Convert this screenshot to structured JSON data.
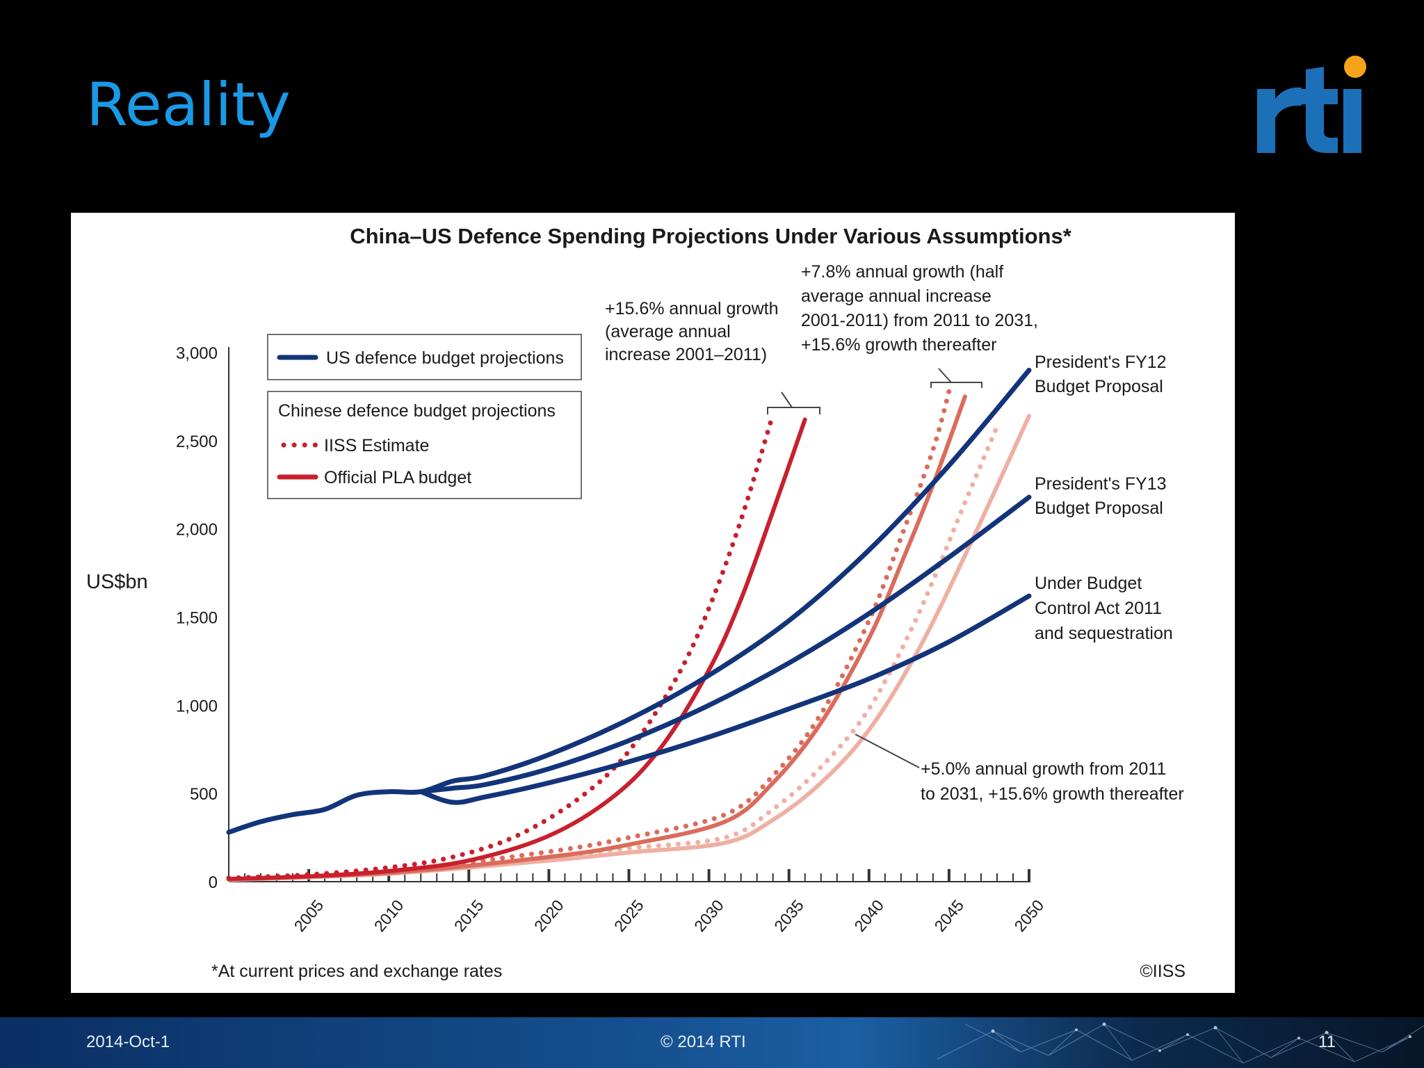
{
  "slide": {
    "title": "Reality",
    "logo_text": "rti",
    "footer": {
      "date": "2014-Oct-1",
      "copyright": "© 2014 RTI",
      "page": "11"
    }
  },
  "colors": {
    "title": "#1a9ae6",
    "us": "#12347a",
    "cn_dark": "#c8202e",
    "cn_mid": "#db6b5b",
    "cn_light": "#eeb0a2",
    "logo_blue": "#1c70b8",
    "logo_orange": "#f7a21b"
  },
  "chart_data": {
    "type": "line",
    "title": "China–US Defence Spending Projections Under Various Assumptions*",
    "ylabel": "US$bn",
    "xlabel": "",
    "xlim": [
      2000,
      2050
    ],
    "ylim": [
      0,
      3000
    ],
    "yticks": [
      0,
      500,
      1000,
      1500,
      2000,
      2500,
      3000
    ],
    "ytick_labels": [
      "0",
      "500",
      "1,000",
      "1,500",
      "2,000",
      "2,500",
      "3,000"
    ],
    "xticks": [
      2005,
      2010,
      2015,
      2020,
      2025,
      2030,
      2035,
      2040,
      2045,
      2050
    ],
    "footnote": "*At current prices and exchange rates",
    "source": "©IISS",
    "legend": {
      "us_label": "US defence budget projections",
      "cn_header": "Chinese defence budget projections",
      "iiss_label": "IISS Estimate",
      "pla_label": "Official PLA budget"
    },
    "series": [
      {
        "name": "US – President's FY12 Budget Proposal",
        "style": "us",
        "x": [
          2000,
          2002,
          2004,
          2006,
          2008,
          2010,
          2012,
          2014,
          2016,
          2020,
          2025,
          2030,
          2035,
          2040,
          2045,
          2050
        ],
        "values": [
          280,
          340,
          380,
          410,
          490,
          510,
          510,
          570,
          600,
          720,
          920,
          1170,
          1480,
          1880,
          2360,
          2900
        ]
      },
      {
        "name": "US – President's FY13 Budget Proposal",
        "style": "us",
        "x": [
          2012,
          2014,
          2016,
          2020,
          2025,
          2030,
          2035,
          2040,
          2045,
          2050
        ],
        "values": [
          510,
          530,
          550,
          640,
          800,
          1000,
          1240,
          1520,
          1840,
          2180
        ]
      },
      {
        "name": "US – Under Budget Control Act 2011 and sequestration",
        "style": "us",
        "x": [
          2012,
          2014,
          2016,
          2020,
          2025,
          2030,
          2035,
          2040,
          2045,
          2050
        ],
        "values": [
          510,
          450,
          480,
          560,
          680,
          820,
          980,
          1150,
          1360,
          1620
        ]
      },
      {
        "name": "China IISS Estimate – +15.6% annual growth",
        "style": "dark-dotted",
        "x": [
          2000,
          2005,
          2010,
          2014,
          2018,
          2022,
          2025,
          2028,
          2030,
          2032,
          2034
        ],
        "values": [
          20,
          40,
          80,
          140,
          260,
          480,
          740,
          1160,
          1550,
          2050,
          2650
        ]
      },
      {
        "name": "China Official PLA – +15.6% annual growth",
        "style": "dark-solid",
        "x": [
          2000,
          2005,
          2010,
          2015,
          2020,
          2024,
          2027,
          2030,
          2032,
          2034,
          2036
        ],
        "values": [
          15,
          30,
          60,
          120,
          260,
          480,
          760,
          1200,
          1600,
          2100,
          2620
        ]
      },
      {
        "name": "China IISS Estimate – +7.8% then +15.6%",
        "style": "mid-dotted",
        "x": [
          2000,
          2010,
          2020,
          2025,
          2031,
          2034,
          2037,
          2040,
          2042,
          2044,
          2045
        ],
        "values": [
          20,
          60,
          170,
          250,
          380,
          600,
          950,
          1480,
          1950,
          2450,
          2780
        ]
      },
      {
        "name": "China Official PLA – +7.8% then +15.6%",
        "style": "mid-solid",
        "x": [
          2000,
          2010,
          2020,
          2025,
          2031,
          2034,
          2037,
          2040,
          2042,
          2044,
          2046
        ],
        "values": [
          15,
          50,
          140,
          210,
          340,
          560,
          900,
          1380,
          1800,
          2250,
          2750
        ]
      },
      {
        "name": "China IISS Estimate – +5.0% then +15.6%",
        "style": "light-dotted",
        "x": [
          2000,
          2010,
          2020,
          2025,
          2031,
          2034,
          2037,
          2040,
          2043,
          2046,
          2048
        ],
        "values": [
          15,
          55,
          140,
          190,
          250,
          410,
          650,
          980,
          1500,
          2150,
          2580
        ]
      },
      {
        "name": "China Official PLA – +5.0% then +15.6%",
        "style": "light-solid",
        "x": [
          2000,
          2010,
          2020,
          2025,
          2031,
          2034,
          2037,
          2040,
          2043,
          2046,
          2050
        ],
        "values": [
          10,
          45,
          120,
          165,
          220,
          350,
          560,
          860,
          1300,
          1850,
          2640
        ]
      }
    ],
    "annotations": {
      "a1": [
        "+15.6% annual growth",
        "(average annual",
        "increase 2001–2011)"
      ],
      "a2": [
        "+7.8% annual growth (half",
        "average annual increase",
        "2001-2011) from 2011 to 2031,",
        "+15.6% growth thereafter"
      ],
      "a3": [
        "+5.0% annual growth from 2011",
        "to 2031, +15.6% growth thereafter"
      ],
      "us1": [
        "President's FY12",
        "Budget Proposal"
      ],
      "us2": [
        "President's FY13",
        "Budget Proposal"
      ],
      "us3": [
        "Under Budget",
        "Control Act 2011",
        "and sequestration"
      ]
    }
  }
}
